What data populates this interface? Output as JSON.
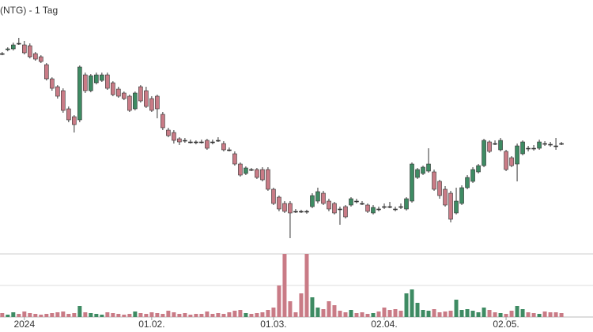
{
  "chart_data": {
    "type": "candlestick",
    "title": "(NTG) - 1 Tag",
    "open": [
      252,
      257,
      258,
      265,
      263,
      262,
      252,
      248,
      238,
      220,
      210,
      205,
      182,
      172,
      168,
      225,
      205,
      215,
      218,
      225,
      215,
      207,
      202,
      198,
      182,
      210,
      205,
      195,
      198,
      175,
      155,
      152,
      144,
      142,
      140,
      140,
      140,
      142,
      140,
      142,
      138,
      130,
      125,
      112,
      100,
      105,
      105,
      105,
      105,
      80,
      70,
      62,
      62,
      52,
      52,
      52,
      58,
      65,
      75,
      65,
      62,
      55,
      58,
      60,
      65,
      62,
      60,
      50,
      55,
      58,
      58,
      55,
      58,
      55,
      65,
      95,
      100,
      103,
      102,
      90,
      80,
      75,
      50,
      62,
      82,
      90,
      102,
      110,
      140,
      138,
      130,
      128,
      120,
      112,
      125,
      132,
      132,
      132,
      138,
      137,
      135,
      138
    ],
    "high": [
      254,
      260,
      266,
      272,
      268,
      265,
      254,
      250,
      240,
      222,
      212,
      208,
      185,
      174,
      237,
      228,
      226,
      228,
      228,
      228,
      217,
      210,
      204,
      200,
      204,
      212,
      210,
      198,
      200,
      178,
      158,
      155,
      146,
      145,
      143,
      142,
      143,
      144,
      143,
      146,
      141,
      133,
      128,
      114,
      109,
      107,
      107,
      108,
      108,
      82,
      72,
      65,
      65,
      55,
      54,
      54,
      75,
      82,
      78,
      68,
      64,
      58,
      60,
      70,
      68,
      65,
      62,
      60,
      58,
      62,
      64,
      58,
      62,
      70,
      114,
      107,
      110,
      132,
      105,
      92,
      84,
      78,
      82,
      85,
      98,
      108,
      112,
      144,
      142,
      142,
      145,
      130,
      122,
      138,
      142,
      135,
      136,
      143,
      141,
      140,
      145,
      140
    ],
    "low": [
      250,
      255,
      256,
      263,
      251,
      246,
      243,
      240,
      218,
      205,
      195,
      177,
      165,
      152,
      165,
      202,
      203,
      213,
      216,
      206,
      198,
      196,
      193,
      178,
      180,
      190,
      183,
      178,
      170,
      155,
      146,
      138,
      136,
      139,
      138,
      137,
      138,
      130,
      137,
      140,
      128,
      128,
      110,
      96,
      98,
      103,
      93,
      90,
      78,
      60,
      52,
      50,
      18,
      50,
      50,
      49,
      56,
      62,
      60,
      52,
      48,
      35,
      43,
      58,
      62,
      60,
      50,
      48,
      52,
      55,
      56,
      52,
      55,
      53,
      63,
      93,
      98,
      101,
      78,
      68,
      58,
      38,
      48,
      60,
      80,
      88,
      100,
      108,
      126,
      136,
      128,
      103,
      108,
      90,
      123,
      128,
      129,
      130,
      135,
      134,
      130,
      136
    ],
    "close": [
      252,
      258,
      263,
      265,
      253,
      248,
      245,
      242,
      220,
      208,
      198,
      180,
      168,
      162,
      235,
      205,
      224,
      225,
      225,
      208,
      200,
      198,
      195,
      180,
      202,
      192,
      185,
      180,
      182,
      158,
      148,
      142,
      140,
      142,
      140,
      140,
      140,
      132,
      140,
      142,
      130,
      130,
      112,
      98,
      107,
      105,
      95,
      92,
      80,
      62,
      55,
      52,
      50,
      52,
      52,
      52,
      72,
      77,
      62,
      55,
      50,
      55,
      45,
      68,
      65,
      62,
      52,
      57,
      55,
      58,
      58,
      55,
      58,
      68,
      112,
      105,
      108,
      112,
      80,
      72,
      60,
      42,
      65,
      82,
      95,
      105,
      110,
      142,
      128,
      138,
      142,
      105,
      110,
      135,
      140,
      132,
      132,
      140,
      138,
      137,
      135,
      138
    ],
    "volume": [
      5,
      3,
      6,
      4,
      7,
      5,
      4,
      3,
      4,
      5,
      6,
      7,
      4,
      5,
      14,
      6,
      5,
      4,
      3,
      6,
      5,
      4,
      3,
      4,
      7,
      5,
      4,
      6,
      5,
      4,
      8,
      6,
      4,
      5,
      3,
      4,
      4,
      7,
      4,
      5,
      4,
      6,
      8,
      9,
      5,
      4,
      5,
      6,
      9,
      12,
      40,
      80,
      20,
      6,
      30,
      80,
      25,
      12,
      10,
      20,
      15,
      8,
      6,
      9,
      5,
      6,
      4,
      5,
      7,
      12,
      9,
      10,
      8,
      30,
      35,
      18,
      9,
      8,
      10,
      6,
      7,
      8,
      22,
      9,
      10,
      8,
      6,
      12,
      9,
      6,
      5,
      4,
      8,
      14,
      10,
      6,
      5,
      4,
      7,
      6,
      6,
      5
    ],
    "xlim": [
      -0.4,
      106.7
    ],
    "ylim": [
      0,
      320
    ],
    "volume_ylim": [
      0,
      80
    ],
    "xticks": [
      {
        "value": 4,
        "label": "2024"
      },
      {
        "value": 27,
        "label": "01.02."
      },
      {
        "value": 49,
        "label": "01.03."
      },
      {
        "value": 69,
        "label": "02.04."
      },
      {
        "value": 91,
        "label": "02.05."
      }
    ],
    "up_color": "#3e8b63",
    "down_color": "#c97b86",
    "flat_color": "#333333"
  }
}
